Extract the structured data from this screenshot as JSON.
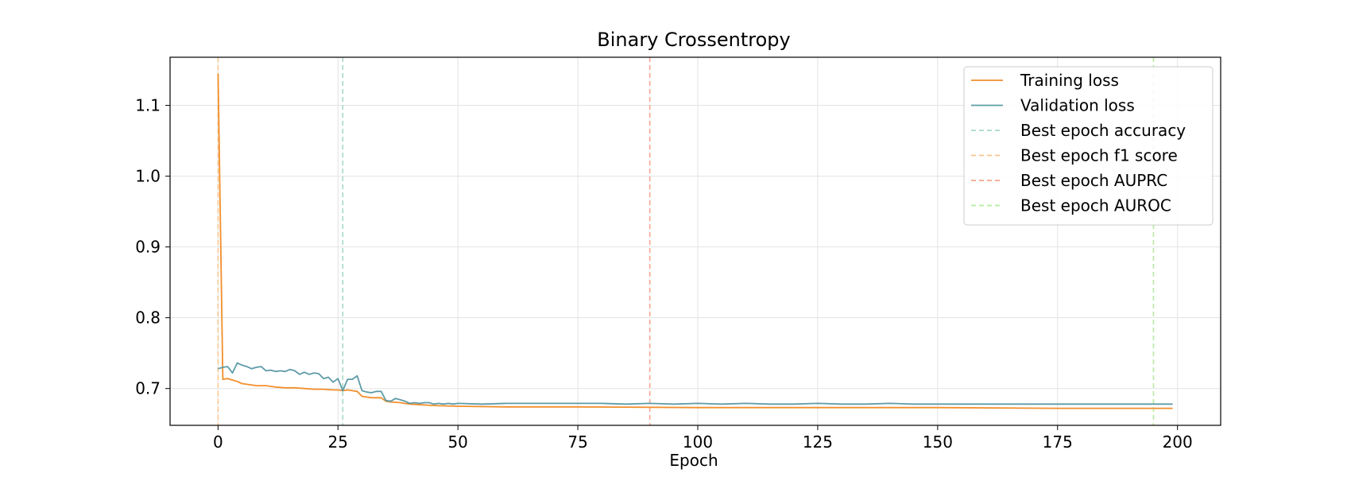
{
  "chart_data": {
    "type": "line",
    "title": "Binary Crossentropy",
    "xlabel": "Epoch",
    "ylabel": "",
    "xlim": [
      -10,
      209
    ],
    "ylim": [
      0.648,
      1.168
    ],
    "xticks": [
      0,
      25,
      50,
      75,
      100,
      125,
      150,
      175,
      200
    ],
    "yticks": [
      0.7,
      0.8,
      0.9,
      1.0,
      1.1
    ],
    "ytick_labels": [
      "0.7",
      "0.8",
      "0.9",
      "1.0",
      "1.1"
    ],
    "grid": true,
    "legend_position": "top-right",
    "series": [
      {
        "name": "Training loss",
        "color": "#f28e2b",
        "x": [
          0,
          1,
          2,
          3,
          4,
          5,
          6,
          8,
          10,
          12,
          14,
          16,
          18,
          20,
          22,
          24,
          25,
          26,
          27,
          28,
          29,
          30,
          32,
          34,
          35,
          36,
          38,
          40,
          45,
          50,
          60,
          75,
          100,
          125,
          150,
          175,
          199
        ],
        "values": [
          1.145,
          0.713,
          0.714,
          0.712,
          0.71,
          0.707,
          0.706,
          0.704,
          0.704,
          0.702,
          0.701,
          0.701,
          0.7,
          0.699,
          0.699,
          0.698,
          0.698,
          0.697,
          0.698,
          0.697,
          0.696,
          0.689,
          0.687,
          0.687,
          0.682,
          0.681,
          0.68,
          0.678,
          0.676,
          0.675,
          0.674,
          0.674,
          0.673,
          0.673,
          0.673,
          0.672,
          0.672
        ]
      },
      {
        "name": "Validation loss",
        "color": "#5e9ca8",
        "x": [
          0,
          1,
          2,
          3,
          4,
          5,
          6,
          7,
          8,
          9,
          10,
          11,
          12,
          13,
          14,
          15,
          16,
          17,
          18,
          19,
          20,
          21,
          22,
          23,
          24,
          25,
          26,
          27,
          28,
          29,
          30,
          31,
          32,
          33,
          34,
          35,
          36,
          37,
          38,
          39,
          40,
          41,
          42,
          43,
          44,
          45,
          46,
          47,
          48,
          49,
          50,
          55,
          60,
          65,
          70,
          75,
          80,
          85,
          90,
          95,
          100,
          105,
          110,
          115,
          120,
          125,
          130,
          135,
          140,
          145,
          150,
          155,
          160,
          165,
          170,
          175,
          180,
          185,
          190,
          195,
          199
        ],
        "values": [
          0.728,
          0.73,
          0.731,
          0.722,
          0.736,
          0.733,
          0.731,
          0.728,
          0.73,
          0.731,
          0.725,
          0.726,
          0.724,
          0.725,
          0.724,
          0.727,
          0.725,
          0.72,
          0.723,
          0.72,
          0.722,
          0.721,
          0.714,
          0.716,
          0.709,
          0.714,
          0.697,
          0.713,
          0.713,
          0.718,
          0.697,
          0.695,
          0.694,
          0.696,
          0.696,
          0.683,
          0.682,
          0.686,
          0.684,
          0.682,
          0.679,
          0.68,
          0.679,
          0.68,
          0.68,
          0.678,
          0.679,
          0.678,
          0.679,
          0.678,
          0.679,
          0.678,
          0.679,
          0.679,
          0.679,
          0.679,
          0.679,
          0.678,
          0.679,
          0.678,
          0.679,
          0.678,
          0.679,
          0.678,
          0.678,
          0.679,
          0.678,
          0.678,
          0.679,
          0.678,
          0.678,
          0.678,
          0.678,
          0.678,
          0.678,
          0.678,
          0.678,
          0.678,
          0.678,
          0.678,
          0.678
        ]
      }
    ],
    "vlines": [
      {
        "name": "Best epoch accuracy",
        "x": 26,
        "color": "#a8dac8"
      },
      {
        "name": "Best epoch f1 score",
        "x": 0,
        "color": "#f9c690"
      },
      {
        "name": "Best epoch AUPRC",
        "x": 90,
        "color": "#f4a48f"
      },
      {
        "name": "Best epoch AUROC",
        "x": 195,
        "color": "#b4ec9e"
      }
    ]
  }
}
